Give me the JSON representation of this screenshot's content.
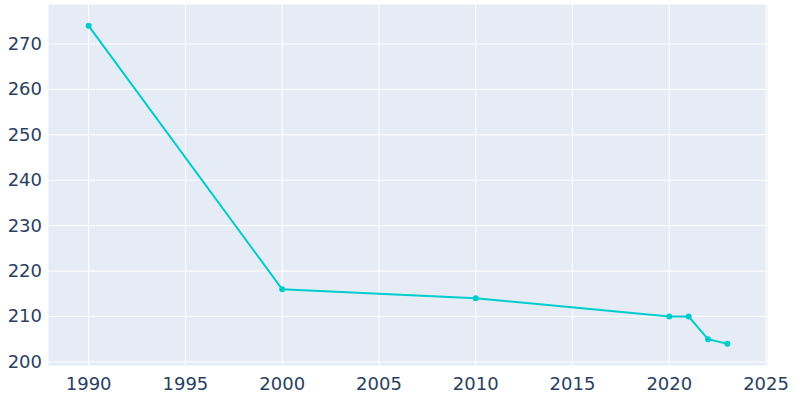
{
  "chart_data": {
    "type": "line",
    "x": [
      1990,
      2000,
      2010,
      2020,
      2021,
      2022,
      2023
    ],
    "values": [
      274,
      216,
      214,
      210,
      210,
      205,
      204
    ],
    "color": "#00cccc",
    "marker": "circle",
    "xlim": [
      1987.9,
      2025.1
    ],
    "xticks": [
      1990,
      1995,
      2000,
      2005,
      2010,
      2015,
      2020,
      2025
    ],
    "ylim": [
      199.1,
      278.8
    ],
    "yticks": [
      200,
      210,
      220,
      230,
      240,
      250,
      260,
      270
    ],
    "grid": true
  }
}
